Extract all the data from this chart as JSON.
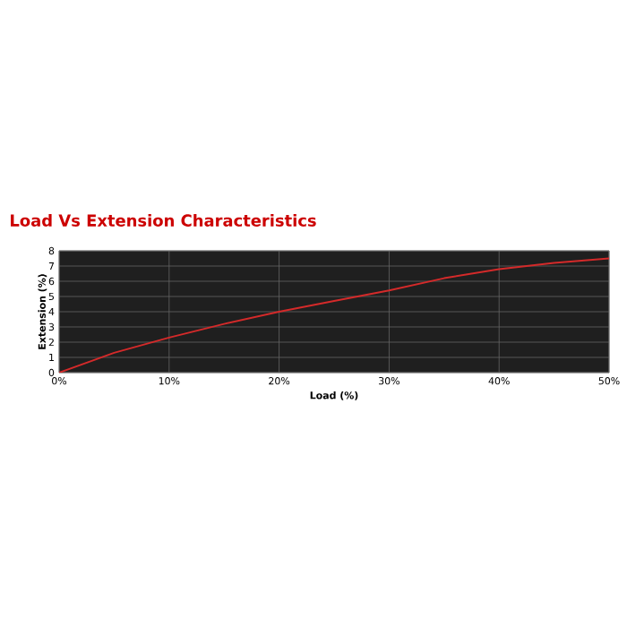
{
  "chart_data": {
    "type": "line",
    "title": "Load Vs Extension Characteristics",
    "xlabel": "Load (%)",
    "ylabel": "Extension (%)",
    "x": [
      0,
      5,
      10,
      15,
      20,
      25,
      30,
      35,
      40,
      45,
      50
    ],
    "series": [
      {
        "color": "#d42a2a",
        "values": [
          0,
          1.3,
          2.3,
          3.2,
          4,
          4.7,
          5.4,
          6.2,
          6.8,
          7.2,
          7.5
        ]
      }
    ],
    "xlim": [
      0,
      50
    ],
    "ylim": [
      0,
      8
    ],
    "xticks": [
      {
        "value": 0,
        "label": "0%"
      },
      {
        "value": 10,
        "label": "10%"
      },
      {
        "value": 20,
        "label": "20%"
      },
      {
        "value": 30,
        "label": "30%"
      },
      {
        "value": 40,
        "label": "40%"
      },
      {
        "value": 50,
        "label": "50%"
      }
    ],
    "yticks": [
      0,
      1,
      2,
      3,
      4,
      5,
      6,
      7,
      8
    ],
    "grid": true,
    "marker": "none",
    "line_style": "solid"
  }
}
